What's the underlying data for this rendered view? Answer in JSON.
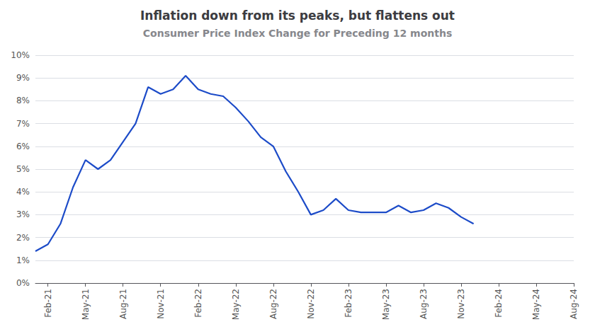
{
  "chart_data": {
    "type": "line",
    "title": "Inflation down from its peaks, but flattens out",
    "subtitle": "Consumer Price Index Change for Preceding 12 months",
    "categories": [
      null,
      "Feb-21",
      null,
      null,
      "May-21",
      null,
      null,
      "Aug-21",
      null,
      null,
      "Nov-21",
      null,
      null,
      "Feb-22",
      null,
      null,
      "May-22",
      null,
      null,
      "Aug-22",
      null,
      null,
      "Nov-22",
      null,
      null,
      "Feb-23",
      null,
      null,
      "May-23",
      null,
      null,
      "Aug-23",
      null,
      null,
      "Nov-23",
      null,
      null,
      "Feb-24",
      null,
      null,
      "May-24",
      null,
      null,
      "Aug-24"
    ],
    "values": [
      1.4,
      1.7,
      2.6,
      4.2,
      5.4,
      5.0,
      5.4,
      6.2,
      7.0,
      8.6,
      8.3,
      8.5,
      9.1,
      8.5,
      8.3,
      8.2,
      7.7,
      7.1,
      6.4,
      6.0,
      4.9,
      4.0,
      3.0,
      3.2,
      3.7,
      3.2,
      3.1,
      3.1,
      3.1,
      3.4,
      3.1,
      3.2,
      3.5,
      3.3,
      2.9,
      2.6,
      null,
      null,
      null,
      null,
      null,
      null,
      null,
      null
    ],
    "color": "#1c4bc8",
    "ylim": [
      0,
      10
    ],
    "yticks": [
      {
        "value": 0,
        "label": "0%"
      },
      {
        "value": 1,
        "label": "1%"
      },
      {
        "value": 2,
        "label": "2%"
      },
      {
        "value": 3,
        "label": "3%"
      },
      {
        "value": 4,
        "label": "4%"
      },
      {
        "value": 5,
        "label": "5%"
      },
      {
        "value": 6,
        "label": "6%"
      },
      {
        "value": 7,
        "label": "7%"
      },
      {
        "value": 8,
        "label": "8%"
      },
      {
        "value": 9,
        "label": "9%"
      },
      {
        "value": 10,
        "label": "10%"
      }
    ],
    "grid": true
  }
}
